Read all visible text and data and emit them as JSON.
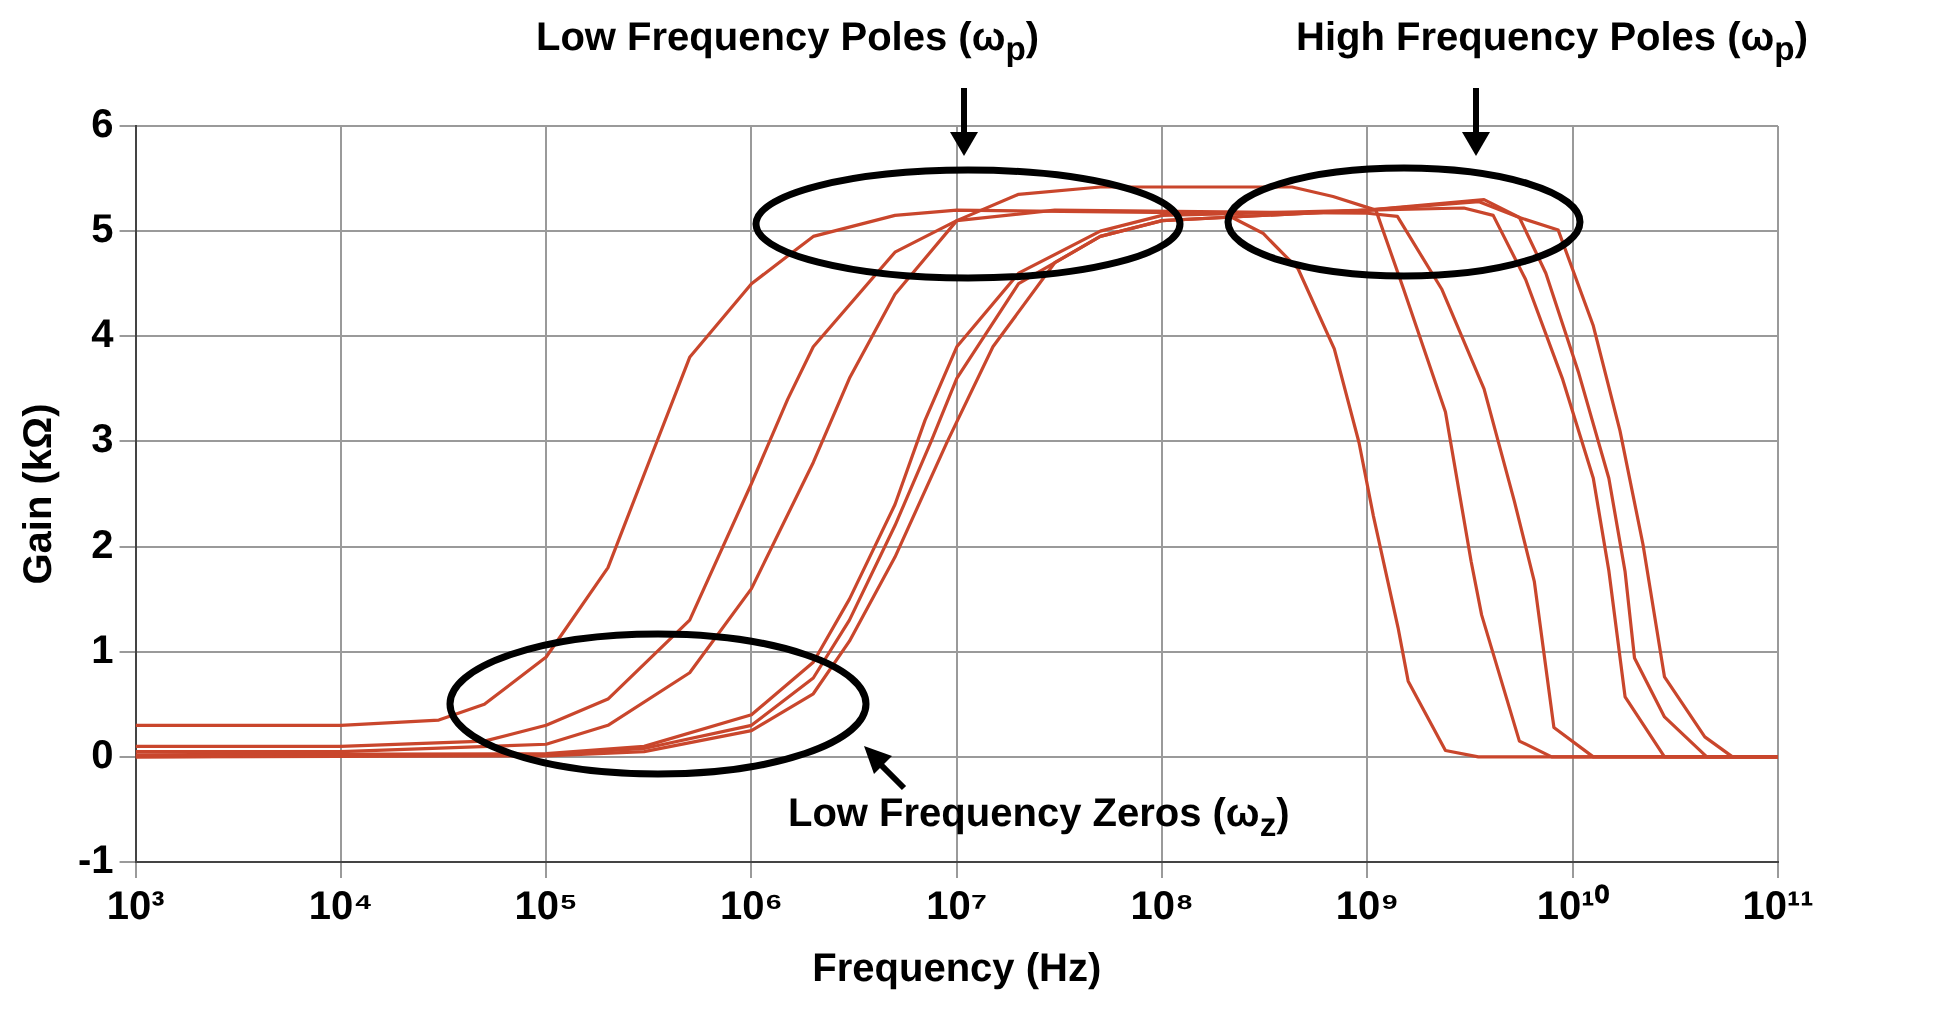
{
  "chart_data": {
    "type": "line",
    "xlabel": "Frequency (Hz)",
    "ylabel": "Gain (kΩ)",
    "log": "x",
    "grid": true,
    "legend": false,
    "marker": "none",
    "line_style": "solid",
    "xlim": [
      1000,
      100000000000
    ],
    "xticks": [
      {
        "value": 1000,
        "label": "10³"
      },
      {
        "value": 10000,
        "label": "10⁴"
      },
      {
        "value": 100000,
        "label": "10⁵"
      },
      {
        "value": 1000000,
        "label": "10⁶"
      },
      {
        "value": 10000000,
        "label": "10⁷"
      },
      {
        "value": 100000000,
        "label": "10⁸"
      },
      {
        "value": 1000000000,
        "label": "10⁹"
      },
      {
        "value": 10000000000,
        "label": "10¹⁰"
      },
      {
        "value": 100000000000,
        "label": "10¹¹"
      }
    ],
    "ylim": [
      -1,
      6
    ],
    "yticks": [
      -1,
      0,
      1,
      2,
      3,
      4,
      5,
      6
    ],
    "annotations": [
      "Low Frequency Poles (ω$_{p}$)",
      "High Frequency Poles (ω$_{p}$)",
      "Low Frequency Zeros (ω$_{z}$)"
    ],
    "series": [
      {
        "color": "#c9462c",
        "x": [
          1000,
          10000,
          30000,
          50000,
          100000,
          200000,
          316000,
          500000,
          1000000,
          2000000,
          5000000,
          10000000,
          200000000,
          310000000,
          460000000,
          690000000,
          910000000,
          1070000000,
          1410000000,
          1580000000,
          2400000000,
          3470000000,
          100000000000
        ],
        "values": [
          0.3,
          0.3,
          0.35,
          0.5,
          0.95,
          1.8,
          2.8,
          3.8,
          4.5,
          4.95,
          5.15,
          5.2,
          5.17,
          4.98,
          4.64,
          3.88,
          2.99,
          2.29,
          1.23,
          0.72,
          0.06,
          0,
          0
        ]
      },
      {
        "color": "#c9462c",
        "x": [
          1000,
          10000,
          50000,
          100000,
          200000,
          500000,
          1000000,
          1500000,
          2000000,
          5000000,
          10000000,
          30000000,
          1000000000,
          1400000000,
          2300000000,
          3700000000,
          5200000000,
          6500000000,
          8100000000,
          12600000000,
          100000000000
        ],
        "values": [
          0.1,
          0.1,
          0.15,
          0.3,
          0.55,
          1.3,
          2.6,
          3.4,
          3.9,
          4.8,
          5.1,
          5.2,
          5.17,
          5.14,
          4.45,
          3.5,
          2.43,
          1.67,
          0.28,
          0,
          0
        ]
      },
      {
        "color": "#c9462c",
        "x": [
          1000,
          10000,
          100000,
          200000,
          500000,
          1000000,
          2000000,
          3000000,
          5000000,
          10000000,
          20000000,
          50000000,
          430000000,
          680000000,
          1100000000,
          1500000000,
          2400000000,
          3200000000,
          3600000000,
          5500000000,
          7900000000,
          100000000000
        ],
        "values": [
          0.05,
          0.05,
          0.12,
          0.3,
          0.8,
          1.6,
          2.8,
          3.6,
          4.4,
          5.1,
          5.35,
          5.42,
          5.42,
          5.33,
          5.2,
          4.45,
          3.28,
          1.86,
          1.35,
          0.15,
          0,
          0
        ]
      },
      {
        "color": "#c9462c",
        "x": [
          1000,
          100000,
          300000,
          1000000,
          2000000,
          3000000,
          5000000,
          7000000,
          10000000,
          20000000,
          50000000,
          100000000,
          1000000000,
          2950000000,
          4100000000,
          5900000000,
          8900000000,
          12600000000,
          15000000000,
          18000000000,
          28000000000,
          100000000000
        ],
        "values": [
          0.02,
          0.03,
          0.1,
          0.4,
          0.9,
          1.5,
          2.4,
          3.2,
          3.9,
          4.6,
          5,
          5.15,
          5.2,
          5.22,
          5.15,
          4.54,
          3.6,
          2.65,
          1.77,
          0.57,
          0,
          0
        ]
      },
      {
        "color": "#c9462c",
        "x": [
          1000,
          100000,
          300000,
          1000000,
          2000000,
          3000000,
          5000000,
          7500000,
          10000000,
          20000000,
          50000000,
          100000000,
          1000000000,
          3500000000,
          5500000000,
          7400000000,
          10700000000,
          15000000000,
          18000000000,
          20000000000,
          28000000000,
          45000000000,
          100000000000
        ],
        "values": [
          0,
          0.02,
          0.08,
          0.3,
          0.75,
          1.3,
          2.2,
          3,
          3.6,
          4.5,
          4.95,
          5.1,
          5.2,
          5.28,
          5.13,
          4.6,
          3.65,
          2.65,
          1.76,
          0.94,
          0.38,
          0,
          0
        ]
      },
      {
        "color": "#c9462c",
        "x": [
          1000,
          100000,
          300000,
          1000000,
          2000000,
          3000000,
          5000000,
          9000000,
          15000000,
          30000000,
          50000000,
          100000000,
          1000000000,
          3700000000,
          5500000000,
          8500000000,
          12600000000,
          17000000000,
          22000000000,
          28000000000,
          44000000000,
          60000000000,
          100000000000
        ],
        "values": [
          0,
          0.01,
          0.05,
          0.25,
          0.6,
          1.1,
          1.9,
          3,
          3.9,
          4.7,
          4.95,
          5.1,
          5.2,
          5.3,
          5.13,
          5.01,
          4.1,
          3.1,
          2.02,
          0.76,
          0.19,
          0,
          0
        ]
      }
    ]
  }
}
